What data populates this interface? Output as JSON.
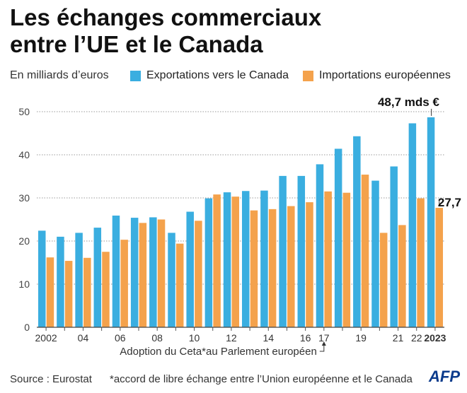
{
  "title": {
    "line1": "Les échanges commerciaux",
    "line2": "entre l’UE et le Canada"
  },
  "unit_label": "En milliards d’euros",
  "legend": {
    "exports": {
      "label": "Exportations vers le Canada",
      "color": "#3aaee0"
    },
    "imports": {
      "label": "Importations européennes",
      "color": "#f4a24c"
    }
  },
  "chart_data": {
    "type": "bar",
    "title": "Les échanges commerciaux entre l’UE et le Canada",
    "ylabel": "En milliards d’euros",
    "ylim": [
      0,
      50
    ],
    "yticks": [
      0,
      10,
      20,
      30,
      40,
      50
    ],
    "grid": true,
    "categories": [
      "2002",
      "2003",
      "2004",
      "2005",
      "2006",
      "2007",
      "2008",
      "2009",
      "2010",
      "2011",
      "2012",
      "2013",
      "2014",
      "2015",
      "2016",
      "2017",
      "2018",
      "2019",
      "2020",
      "2021",
      "2022",
      "2023"
    ],
    "tick_labels": [
      "2002",
      "",
      "04",
      "",
      "06",
      "",
      "08",
      "",
      "10",
      "",
      "12",
      "",
      "14",
      "",
      "16",
      "17",
      "",
      "19",
      "",
      "21",
      "22",
      "2023"
    ],
    "series": [
      {
        "name": "Exportations vers le Canada",
        "color": "#3aaee0",
        "values": [
          22.4,
          21.0,
          21.9,
          23.1,
          25.9,
          25.4,
          25.5,
          21.9,
          26.8,
          29.9,
          31.3,
          31.6,
          31.7,
          35.1,
          35.1,
          37.8,
          41.4,
          44.3,
          34.0,
          37.3,
          47.3,
          48.7
        ]
      },
      {
        "name": "Importations européennes",
        "color": "#f4a24c",
        "values": [
          16.2,
          15.4,
          16.1,
          17.5,
          20.3,
          24.2,
          25.0,
          19.4,
          24.7,
          30.8,
          30.3,
          27.1,
          27.4,
          28.1,
          29.0,
          31.5,
          31.2,
          35.4,
          21.9,
          23.7,
          29.9,
          27.7
        ]
      }
    ],
    "annotations": {
      "exports_last": "48,7 mds €",
      "imports_last": "27,7",
      "ceta": "Adoption du Ceta*au Parlement européen"
    }
  },
  "footer": {
    "source": "Source : Eurostat",
    "note": "*accord de libre échange entre l’Union européenne et le Canada",
    "logo": "AFP"
  }
}
